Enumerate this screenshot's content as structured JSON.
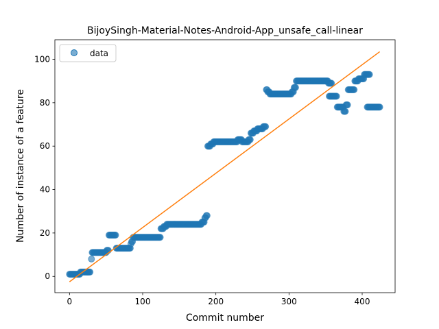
{
  "chart_data": {
    "type": "scatter",
    "title": "BijoySingh-Material-Notes-Android-App_unsafe_call-linear",
    "xlabel": "Commit number",
    "ylabel": "Number of instance of a feature",
    "xlim": [
      -20,
      445
    ],
    "ylim": [
      -7.5,
      109
    ],
    "xticks": [
      0,
      100,
      200,
      300,
      400
    ],
    "yticks": [
      0,
      20,
      40,
      60,
      80,
      100
    ],
    "legend": {
      "placement": "top-left",
      "entries": [
        "data"
      ]
    },
    "colors": {
      "data": "#1f77b4",
      "fit": "#ff7f0e"
    },
    "series": [
      {
        "name": "data",
        "kind": "scatter",
        "segments": [
          [
            0,
            14,
            1
          ],
          [
            15,
            28,
            2
          ],
          [
            30,
            30,
            8
          ],
          [
            31,
            50,
            11
          ],
          [
            51,
            53,
            12
          ],
          [
            54,
            63,
            19
          ],
          [
            64,
            83,
            13
          ],
          [
            84,
            84,
            15
          ],
          [
            85,
            86,
            16
          ],
          [
            87,
            124,
            18
          ],
          [
            125,
            128,
            22
          ],
          [
            129,
            132,
            23
          ],
          [
            133,
            180,
            24
          ],
          [
            181,
            184,
            25
          ],
          [
            185,
            186,
            27
          ],
          [
            187,
            188,
            28
          ],
          [
            189,
            192,
            60
          ],
          [
            193,
            196,
            61
          ],
          [
            197,
            229,
            62
          ],
          [
            230,
            235,
            63
          ],
          [
            236,
            244,
            62
          ],
          [
            245,
            247,
            63
          ],
          [
            248,
            251,
            66
          ],
          [
            252,
            256,
            67
          ],
          [
            257,
            264,
            68
          ],
          [
            265,
            268,
            69
          ],
          [
            269,
            270,
            86
          ],
          [
            271,
            273,
            85
          ],
          [
            274,
            303,
            84
          ],
          [
            304,
            306,
            85
          ],
          [
            307,
            309,
            87
          ],
          [
            310,
            353,
            90
          ],
          [
            354,
            358,
            89
          ],
          [
            355,
            365,
            83
          ],
          [
            366,
            374,
            78
          ],
          [
            375,
            377,
            76
          ],
          [
            378,
            380,
            79
          ],
          [
            381,
            389,
            86
          ],
          [
            390,
            394,
            90
          ],
          [
            395,
            397,
            91
          ],
          [
            398,
            402,
            91
          ],
          [
            403,
            410,
            93
          ],
          [
            407,
            424,
            78
          ]
        ]
      },
      {
        "name": "fit",
        "kind": "line",
        "x": [
          0,
          424
        ],
        "y": [
          -2.5,
          103.5
        ]
      }
    ]
  }
}
